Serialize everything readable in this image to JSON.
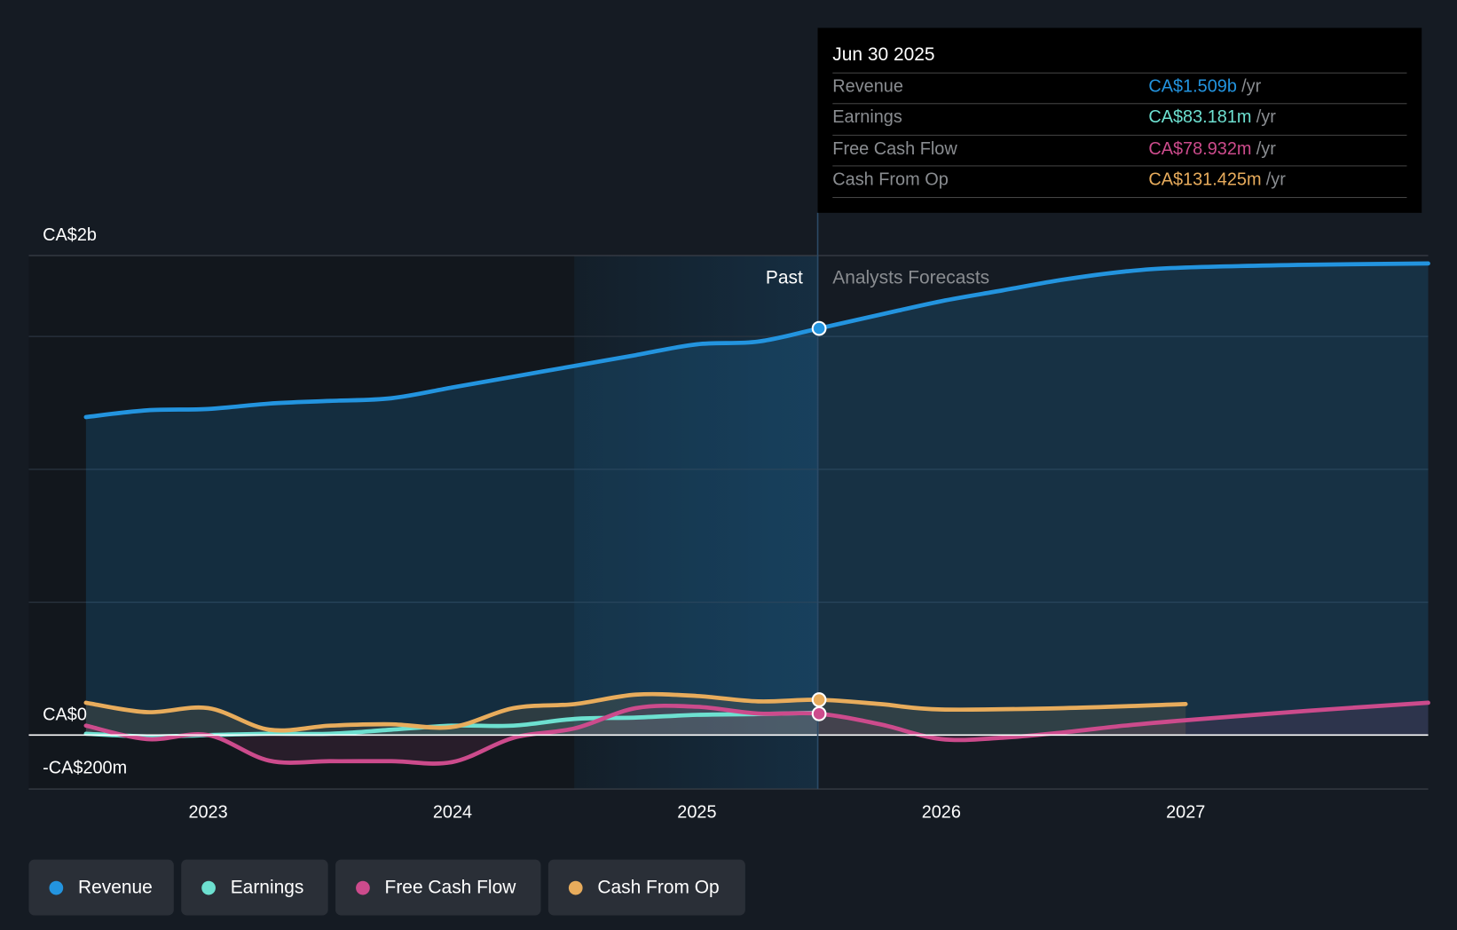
{
  "tooltip": {
    "date": "Jun 30 2025",
    "rows": [
      {
        "label": "Revenue",
        "value": "CA$1.509b",
        "unit": "/yr",
        "color": "#2394df"
      },
      {
        "label": "Earnings",
        "value": "CA$83.181m",
        "unit": "/yr",
        "color": "#6de0d0"
      },
      {
        "label": "Free Cash Flow",
        "value": "CA$78.932m",
        "unit": "/yr",
        "color": "#cc4b8c"
      },
      {
        "label": "Cash From Op",
        "value": "CA$131.425m",
        "unit": "/yr",
        "color": "#e8ac5c"
      }
    ]
  },
  "legend": [
    {
      "label": "Revenue",
      "color": "#2394df"
    },
    {
      "label": "Earnings",
      "color": "#6de0d0"
    },
    {
      "label": "Free Cash Flow",
      "color": "#cc4b8c"
    },
    {
      "label": "Cash From Op",
      "color": "#e8ac5c"
    }
  ],
  "chart_data": {
    "type": "line",
    "title": "",
    "xlabel": "",
    "ylabel": "",
    "ylim": [
      -200,
      1780
    ],
    "y_unit": "CA$m",
    "y_tick_labels": [
      {
        "value": 2000,
        "label": "CA$2b"
      },
      {
        "value": 0,
        "label": "CA$0"
      },
      {
        "value": -200,
        "label": "-CA$200m"
      }
    ],
    "x_tick_labels": [
      "2023",
      "2024",
      "2025",
      "2026",
      "2027"
    ],
    "x_range": [
      2022.5,
      2028.0
    ],
    "past_label": "Past",
    "forecast_label": "Analysts Forecasts",
    "divider_x": 2025.5,
    "highlight_start_x": 2024.5,
    "series": [
      {
        "name": "Revenue",
        "color": "#2394df",
        "x": [
          2022.5,
          2022.75,
          2023.0,
          2023.25,
          2023.5,
          2023.75,
          2024.0,
          2024.25,
          2024.5,
          2024.75,
          2025.0,
          2025.25,
          2025.5,
          2025.75,
          2026.0,
          2026.25,
          2026.5,
          2026.75,
          2027.0,
          2027.5,
          2028.0
        ],
        "y": [
          1180,
          1205,
          1210,
          1230,
          1240,
          1250,
          1290,
          1330,
          1370,
          1410,
          1450,
          1460,
          1509,
          1560,
          1610,
          1650,
          1690,
          1720,
          1735,
          1745,
          1750
        ]
      },
      {
        "name": "Earnings",
        "color": "#6de0d0",
        "x": [
          2022.5,
          2022.75,
          2023.0,
          2023.25,
          2023.5,
          2023.75,
          2024.0,
          2024.25,
          2024.5,
          2024.75,
          2025.0,
          2025.25,
          2025.5
        ],
        "y": [
          5,
          -5,
          0,
          5,
          5,
          20,
          35,
          35,
          60,
          65,
          75,
          78,
          83
        ]
      },
      {
        "name": "Free Cash Flow",
        "color": "#cc4b8c",
        "x": [
          2022.5,
          2022.75,
          2023.0,
          2023.25,
          2023.5,
          2023.75,
          2024.0,
          2024.25,
          2024.5,
          2024.75,
          2025.0,
          2025.25,
          2025.5,
          2025.75,
          2026.0,
          2026.25,
          2026.5,
          2026.75,
          2027.0,
          2027.5,
          2028.0
        ],
        "y": [
          35,
          -15,
          0,
          -95,
          -97,
          -97,
          -100,
          -10,
          25,
          100,
          105,
          80,
          79,
          40,
          -15,
          -10,
          10,
          35,
          55,
          90,
          120
        ]
      },
      {
        "name": "Cash From Op",
        "color": "#e8ac5c",
        "x": [
          2022.5,
          2022.75,
          2023.0,
          2023.25,
          2023.5,
          2023.75,
          2024.0,
          2024.25,
          2024.5,
          2024.75,
          2025.0,
          2025.25,
          2025.5,
          2025.75,
          2026.0,
          2026.5,
          2027.0
        ],
        "y": [
          120,
          85,
          100,
          20,
          35,
          40,
          30,
          100,
          115,
          150,
          145,
          125,
          131,
          115,
          95,
          100,
          115
        ]
      }
    ]
  }
}
